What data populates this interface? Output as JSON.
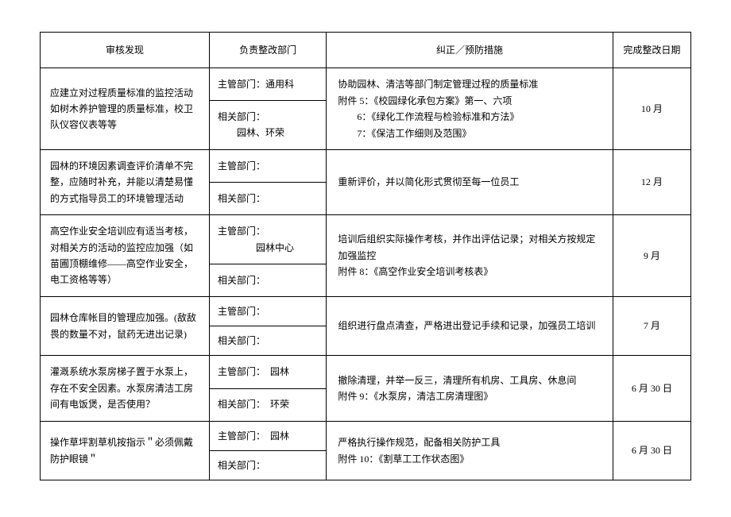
{
  "header": {
    "finding": "审核发现",
    "dept": "负责整改部门",
    "measure": "纠正／预防措施",
    "date": "完成整改日期"
  },
  "rows": [
    {
      "finding": "应建立对过程质量标准的监控活动如树木养护管理的质量标准，校卫队仪容仪表等等",
      "dept_main": "主管部门：通用科",
      "dept_rel": "相关部门：\n　　园林、环荣",
      "measure": "协助园林、清洁等部门制定管理过程的质量标准\n附件 5：《校园绿化承包方案》第一、六项\n　　6：《绿化工作流程与检验标准和方法》\n　　7：《保洁工作细则及范围》",
      "date": "10 月"
    },
    {
      "finding": "园林的环境因素调查评价清单不完整，应随时补充，并能以清楚易懂的方式指导员工的环境管理活动",
      "dept_main": "主管部门：",
      "dept_rel": "相关部门：",
      "measure": "重新评价，并以简化形式贯彻至每一位员工",
      "date": "12 月"
    },
    {
      "finding": "高空作业安全培训应有适当考核，对相关方的活动的监控应加强（如苗圃顶棚维修——高空作业安全，电工资格等等）",
      "dept_main": "主管部门：\n　　　　园林中心",
      "dept_rel": "相关部门：",
      "measure": "培训后组织实际操作考核，并作出评估记录；对相关方按规定加强监控\n附件 8：《高空作业安全培训考核表》",
      "date": "9 月"
    },
    {
      "finding": "园林仓库帐目的管理应加强。(敌敌畏的数量不对，鼠药无进出记录)",
      "dept_main": "主管部门：",
      "dept_rel": "相关部门：",
      "measure": "组织进行盘点清查，严格进出登记手续和记录，加强员工培训",
      "date": "7 月"
    },
    {
      "finding": "灌溉系统水泵房梯子置于水泵上，存在不安全因素。水泵房清洁工房间有电饭煲，是否使用？",
      "dept_main": "主管部门：　园林",
      "dept_rel": "相关部门：　环荣",
      "measure": "撤除清理，并举一反三，清理所有机房、工具房、休息间\n附件 9：《水泵房，清洁工房清理图》",
      "date": "6 月 30 日"
    },
    {
      "finding": "操作草坪割草机按指示＂必须佩戴防护眼镜＂",
      "dept_main": "主管部门：　园林",
      "dept_rel": "相关部门：",
      "measure": "严格执行操作规范，配备相关防护工具\n附件 10：《割草工工作状态图》",
      "date": "6 月 30 日"
    }
  ],
  "style": {
    "bg": "#ffffff",
    "border": "#000000",
    "text": "#000000",
    "font_size_pt": 12
  }
}
